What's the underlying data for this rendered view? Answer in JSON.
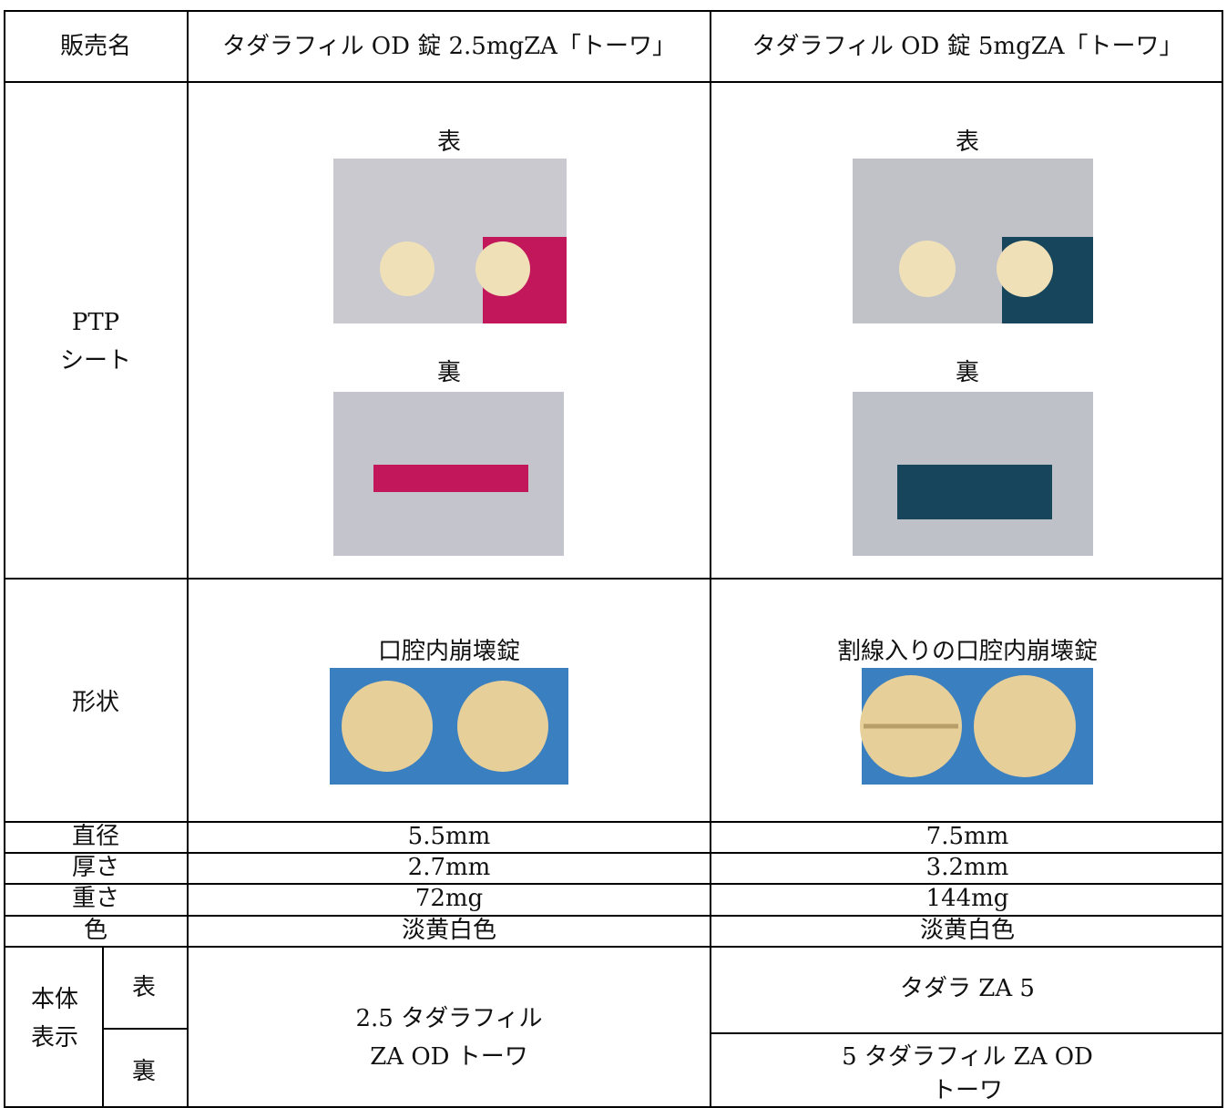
{
  "table": {
    "header": [
      "販売名",
      "タダラフィル OD 錠 2.5mgZA「トーワ」",
      "タダラフィル OD 錠 5mgZA「トーワ」"
    ],
    "ptp": {
      "label": [
        "PTP",
        "シート"
      ],
      "front": [
        "表",
        "表"
      ],
      "back": [
        "裏",
        "裏"
      ]
    },
    "shape": {
      "label": "形状",
      "captions": [
        "口腔内崩壊錠",
        "割線入りの口腔内崩壊錠"
      ]
    },
    "rows": [
      [
        "直径",
        "5.5mm",
        "7.5mm"
      ],
      [
        "厚さ",
        "2.7mm",
        "3.2mm"
      ],
      [
        "重さ",
        "72mg",
        "144mg"
      ],
      [
        "色",
        "淡黄白色",
        "淡黄白色"
      ]
    ],
    "marking": {
      "label": [
        "本体",
        "表示"
      ],
      "front": "表",
      "back": "裏",
      "col1": [
        "2.5 タダラフィル",
        "ZA OD トーワ"
      ],
      "col2_front": "タダラ ZA 5",
      "col2_back": [
        "5 タダラフィル ZA OD",
        "トーワ"
      ]
    }
  }
}
